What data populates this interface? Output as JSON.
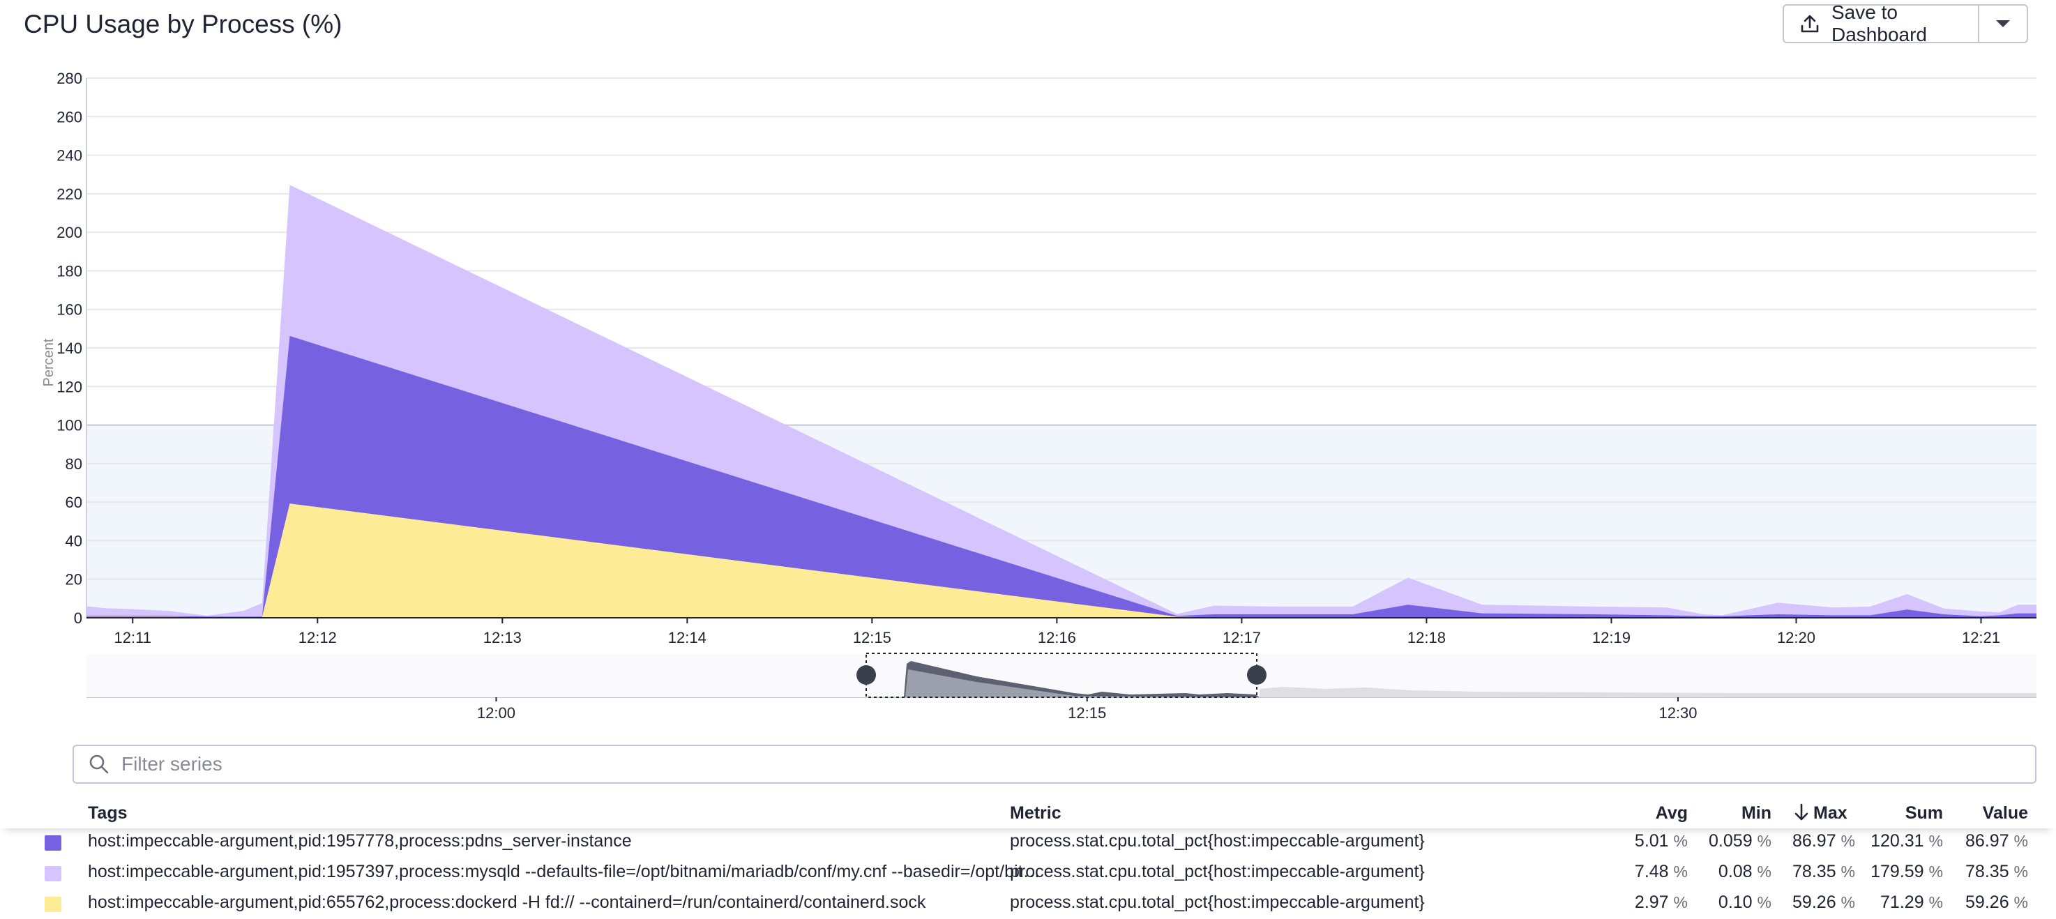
{
  "title": "CPU Usage by Process (%)",
  "toolbar": {
    "save_label": "Save to Dashboard",
    "upload_icon": "upload-icon",
    "caret_icon": "chevron-down-icon"
  },
  "chart_data": {
    "type": "area",
    "stacked": true,
    "ylabel": "Percent",
    "ylim": [
      0,
      280
    ],
    "yticks": [
      0,
      20,
      40,
      60,
      80,
      100,
      120,
      140,
      160,
      180,
      200,
      220,
      240,
      260,
      280
    ],
    "xticks": [
      "12:11",
      "12:12",
      "12:13",
      "12:14",
      "12:15",
      "12:16",
      "12:17",
      "12:18",
      "12:19",
      "12:20",
      "12:21"
    ],
    "xrange_minutes": [
      10.75,
      21.3
    ],
    "threshold_band": [
      0,
      100
    ],
    "grid": true,
    "x": [
      10.75,
      10.85,
      11.0,
      11.2,
      11.4,
      11.6,
      11.7,
      11.85,
      16.65,
      16.85,
      17.2,
      17.45,
      17.6,
      17.9,
      18.3,
      18.9,
      19.3,
      19.5,
      19.6,
      19.9,
      20.2,
      20.4,
      20.6,
      20.8,
      21.0,
      21.1,
      21.2,
      21.3
    ],
    "series": [
      {
        "name": "host:impeccable-argument,pid:655762,process:dockerd -H fd:// --containerd=/run/containerd/containerd.sock",
        "color": "#feeb96",
        "values": [
          0.5,
          0.5,
          0.5,
          0.5,
          0.3,
          0.3,
          0.3,
          59.26,
          0.5,
          0.3,
          0.3,
          0.3,
          0.3,
          0.3,
          0.3,
          0.3,
          0.3,
          0.3,
          0.3,
          0.3,
          0.3,
          0.3,
          0.3,
          0.3,
          0.3,
          0.3,
          0.3,
          0.3
        ]
      },
      {
        "name": "host:impeccable-argument,pid:1957778,process:pdns_server-instance",
        "color": "#7661e0",
        "values": [
          0.5,
          0.5,
          0.5,
          0.5,
          0.3,
          0.3,
          0.3,
          86.97,
          0.5,
          1.5,
          1.5,
          1.5,
          1.5,
          6.5,
          2.0,
          1.5,
          1.0,
          0.5,
          0.5,
          1.5,
          1.0,
          1.0,
          4.0,
          1.5,
          0.5,
          1.0,
          2.0,
          2.0
        ]
      },
      {
        "name": "host:impeccable-argument,pid:1957397,process:mysqld --defaults-file=/opt/bitnami/mariadb/conf/my.cnf --basedir=/opt/bit…",
        "color": "#d5c4fe",
        "values": [
          5.0,
          4.0,
          3.5,
          2.5,
          0.5,
          3.0,
          7.0,
          78.35,
          1.0,
          4.5,
          4.0,
          4.0,
          4.0,
          14.0,
          4.5,
          4.0,
          4.0,
          1.0,
          0.5,
          6.0,
          4.0,
          4.5,
          8.0,
          3.0,
          2.5,
          1.5,
          4.5,
          4.5
        ]
      }
    ]
  },
  "navigator": {
    "ticks": [
      "12:00",
      "12:15",
      "12:30"
    ]
  },
  "filter": {
    "placeholder": "Filter series",
    "search_icon": "search-icon"
  },
  "table": {
    "headers": {
      "tags": "Tags",
      "metric": "Metric",
      "avg": "Avg",
      "min": "Min",
      "max": "Max",
      "sum": "Sum",
      "value": "Value"
    },
    "unit": "%",
    "rows": [
      {
        "color": "#7661e0",
        "tags": "host:impeccable-argument,pid:1957778,process:pdns_server-instance",
        "metric": "process.stat.cpu.total_pct{host:impeccable-argument}",
        "avg": "5.01",
        "min": "0.059",
        "max": "86.97",
        "sum": "120.31",
        "value": "86.97"
      },
      {
        "color": "#d5c4fe",
        "tags": "host:impeccable-argument,pid:1957397,process:mysqld --defaults-file=/opt/bitnami/mariadb/conf/my.cnf --basedir=/opt/bit…",
        "metric": "process.stat.cpu.total_pct{host:impeccable-argument}",
        "avg": "7.48",
        "min": "0.08",
        "max": "78.35",
        "sum": "179.59",
        "value": "78.35"
      },
      {
        "color": "#feeb96",
        "tags": "host:impeccable-argument,pid:655762,process:dockerd -H fd:// --containerd=/run/containerd/containerd.sock",
        "metric": "process.stat.cpu.total_pct{host:impeccable-argument}",
        "avg": "2.97",
        "min": "0.10",
        "max": "59.26",
        "sum": "71.29",
        "value": "59.26"
      }
    ]
  }
}
